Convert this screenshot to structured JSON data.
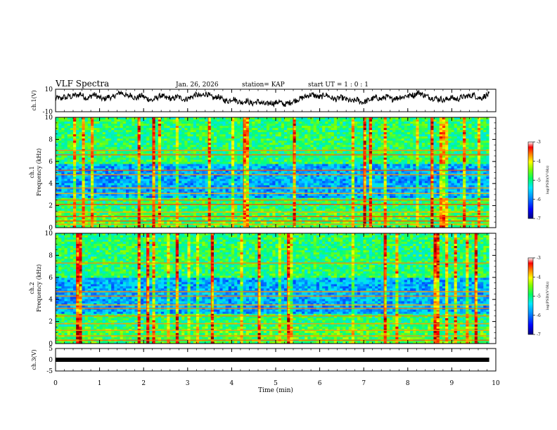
{
  "header": {
    "title": "VLF Spectra",
    "date": "Jan. 26, 2026",
    "station": "station= KAP",
    "start_ut": "start UT =  1 : 0  : 1"
  },
  "colors": {
    "background": "#ffffff",
    "axes": "#000000",
    "colormap": [
      "#000090",
      "#0000ff",
      "#0080ff",
      "#00e0ff",
      "#00ff80",
      "#80ff00",
      "#ffff00",
      "#ff8000",
      "#ff0000",
      "#900000"
    ]
  },
  "chart_data": [
    {
      "type": "line",
      "id": "ch1_waveform",
      "ylabel": "ch.1(V)",
      "ylim": [
        -10,
        10
      ],
      "yticks": [
        10,
        -10
      ],
      "x_range_min": [
        0,
        9.85
      ],
      "series_shape": [
        2,
        3,
        1,
        4,
        2,
        5,
        3,
        6,
        4,
        7,
        5,
        3,
        2,
        4,
        6,
        5,
        3,
        2,
        1,
        3,
        4,
        2,
        5,
        6,
        8,
        7,
        5,
        4,
        6,
        3,
        2,
        4,
        5,
        3,
        2,
        1,
        0,
        2,
        3,
        5,
        4,
        2,
        3,
        1,
        2,
        4,
        3,
        2,
        1,
        2,
        3,
        4,
        6,
        5,
        4,
        6,
        7,
        5,
        3,
        2,
        4,
        3,
        1,
        0,
        -1,
        1,
        2,
        0,
        -1,
        -2,
        -1,
        0,
        -2,
        -3,
        -2,
        -1,
        -2,
        -3,
        -4,
        -3,
        -2,
        -3,
        -2,
        -1,
        -3,
        -4,
        -3,
        -2,
        -1,
        0,
        1,
        2,
        3,
        4,
        5,
        6,
        5,
        4,
        3,
        4,
        6,
        5,
        3,
        2,
        1,
        2,
        3,
        2,
        1,
        0,
        -1,
        0,
        1,
        -1,
        -2,
        -1,
        0,
        1,
        2,
        3,
        2,
        1,
        3,
        4,
        2,
        1,
        3,
        2,
        4,
        3,
        5,
        4,
        6,
        5,
        7,
        8,
        6,
        5,
        4,
        3,
        2,
        3,
        1,
        2,
        0,
        1,
        2,
        3,
        2,
        1,
        2,
        4,
        3,
        5,
        4,
        6,
        4,
        3,
        2,
        4,
        5,
        6
      ]
    },
    {
      "type": "heatmap",
      "id": "ch1_spectrogram",
      "ylabel": "ch.1 Frequency (kHz)",
      "ylabel_ch": "ch.1",
      "ylabel_freq": "Frequency (kHz)",
      "ylim": [
        0,
        10
      ],
      "yticks": [
        0,
        2,
        4,
        6,
        8,
        10
      ],
      "x_range_min": [
        0,
        9.85
      ],
      "colorbar": {
        "label": "log(PSD)(V²/Hz)",
        "range": [
          -7,
          -3
        ],
        "ticks": [
          -3,
          -4,
          -5,
          -6,
          -7
        ]
      },
      "bands_khz": [
        0.3,
        0.6,
        1.0,
        1.4,
        2.1,
        2.5,
        3.1,
        3.6,
        4.8,
        5.2,
        6.6,
        7.0
      ],
      "quiet_range_khz": [
        2.6,
        5.8
      ]
    },
    {
      "type": "heatmap",
      "id": "ch2_spectrogram",
      "ylabel": "ch.2 Frequency (kHz)",
      "ylabel_ch": "ch.2",
      "ylabel_freq": "Frequency (kHz)",
      "ylim": [
        0,
        10
      ],
      "yticks": [
        0,
        2,
        4,
        6,
        8,
        10
      ],
      "x_range_min": [
        0,
        9.85
      ],
      "colorbar": {
        "label": "log(PSD)(V²/Hz)",
        "range": [
          -7,
          -3
        ],
        "ticks": [
          -3,
          -4,
          -5,
          -6,
          -7
        ]
      },
      "bands_khz": [
        0.3,
        0.7,
        1.2,
        1.8,
        2.5,
        3.2,
        3.5,
        4.3,
        4.7,
        7.3
      ],
      "quiet_range_khz": [
        2.6,
        6.0
      ]
    },
    {
      "type": "line",
      "id": "ch3_waveform",
      "ylabel": "ch.3(V)",
      "ylim": [
        -5,
        5
      ],
      "yticks": [
        5,
        0,
        -5
      ],
      "x_range_min": [
        0,
        9.85
      ],
      "level": 0
    }
  ],
  "xaxis": {
    "label": "Time (min)",
    "ticks": [
      0,
      1,
      2,
      3,
      4,
      5,
      6,
      7,
      8,
      9,
      10
    ],
    "tick_labels": [
      "0",
      "1",
      "2",
      "3",
      "4",
      "5",
      "6",
      "7",
      "8",
      "9",
      "10"
    ],
    "range": [
      0,
      10
    ]
  }
}
